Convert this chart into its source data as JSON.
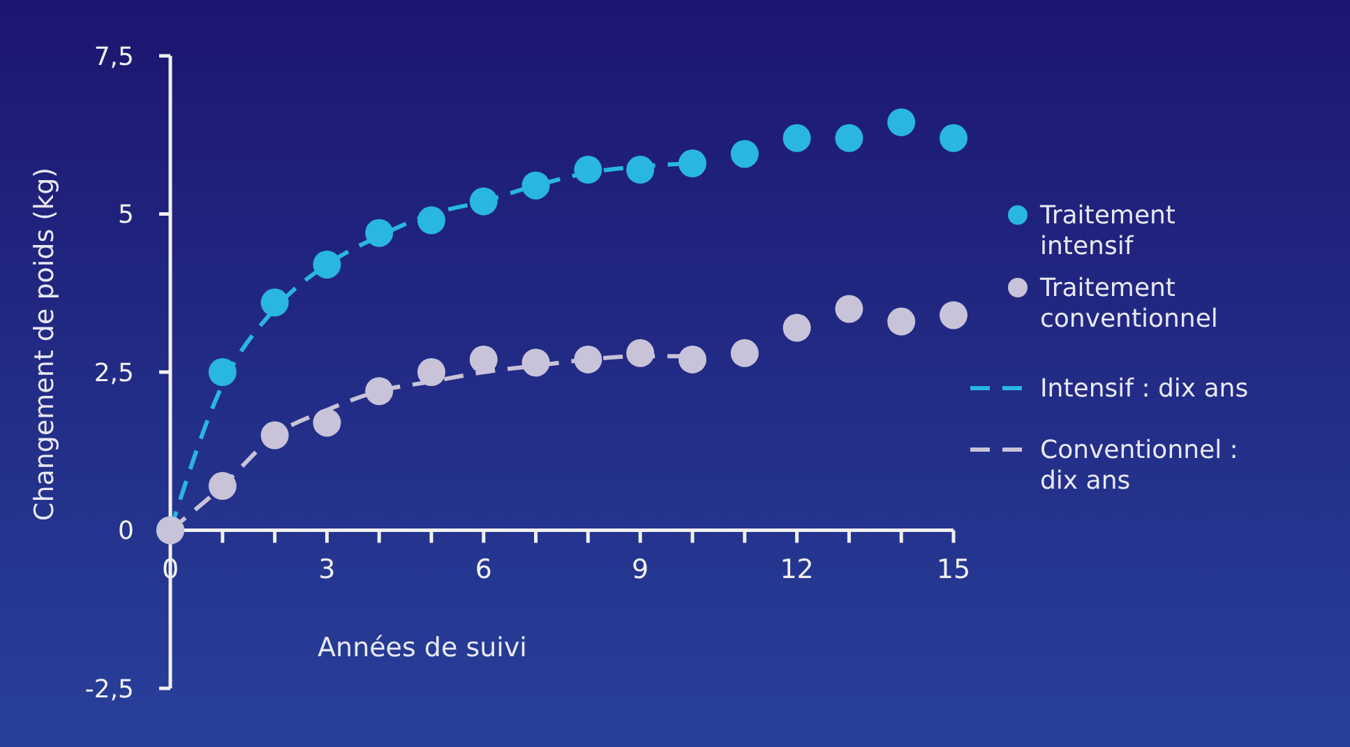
{
  "chart_data": {
    "type": "scatter",
    "xlabel": "Années de suivi",
    "ylabel": "Changement de poids (kg)",
    "xlim": [
      0,
      15
    ],
    "ylim": [
      -2.5,
      7.5
    ],
    "xticks": [
      0,
      {
        "value": 1,
        "label": null
      },
      {
        "value": 2,
        "label": null
      },
      3,
      {
        "value": 4,
        "label": null
      },
      {
        "value": 5,
        "label": null
      },
      6,
      {
        "value": 7,
        "label": null
      },
      {
        "value": 8,
        "label": null
      },
      9,
      {
        "value": 10,
        "label": null
      },
      {
        "value": 11,
        "label": null
      },
      12,
      {
        "value": 13,
        "label": null
      },
      {
        "value": 14,
        "label": null
      },
      15
    ],
    "yticks": [
      {
        "value": -2.5,
        "label": "-2,5"
      },
      0,
      {
        "value": 2.5,
        "label": "2,5"
      },
      5,
      {
        "value": 7.5,
        "label": "7,5"
      }
    ],
    "grid": false,
    "legend": "right",
    "marker": "circle",
    "series": [
      {
        "name": "Traitement intensif",
        "color": "#29b6e0",
        "x": [
          0,
          1,
          2,
          3,
          4,
          5,
          6,
          7,
          8,
          9,
          10,
          11,
          12,
          13,
          14,
          15
        ],
        "values": [
          0,
          2.5,
          3.6,
          4.2,
          4.7,
          4.9,
          5.2,
          5.45,
          5.7,
          5.7,
          5.8,
          5.95,
          6.2,
          6.2,
          6.45,
          6.2
        ]
      },
      {
        "name": "Traitement conventionnel",
        "color": "#c8c3d8",
        "x": [
          0,
          1,
          2,
          3,
          4,
          5,
          6,
          7,
          8,
          9,
          10,
          11,
          12,
          13,
          14,
          15
        ],
        "values": [
          0,
          0.7,
          1.5,
          1.7,
          2.2,
          2.5,
          2.7,
          2.65,
          2.7,
          2.8,
          2.7,
          2.8,
          3.2,
          3.5,
          3.3,
          3.4
        ]
      },
      {
        "name": "Intensif : dix ans",
        "type": "line",
        "line_style": "dashed",
        "marker": "none",
        "color": "#29b6e0",
        "x": [
          0,
          1,
          2,
          3,
          4,
          5,
          6,
          7,
          8,
          9,
          10
        ],
        "values": [
          0,
          2.3,
          3.5,
          4.2,
          4.65,
          5.0,
          5.2,
          5.45,
          5.65,
          5.75,
          5.8
        ]
      },
      {
        "name": "Conventionnel : dix ans",
        "type": "line",
        "line_style": "dashed",
        "marker": "none",
        "color": "#c8c3d8",
        "x": [
          0,
          1,
          2,
          3,
          4,
          5,
          6,
          7,
          8,
          9,
          10
        ],
        "values": [
          0,
          0.7,
          1.5,
          1.9,
          2.2,
          2.35,
          2.5,
          2.6,
          2.7,
          2.75,
          2.75
        ]
      }
    ]
  }
}
